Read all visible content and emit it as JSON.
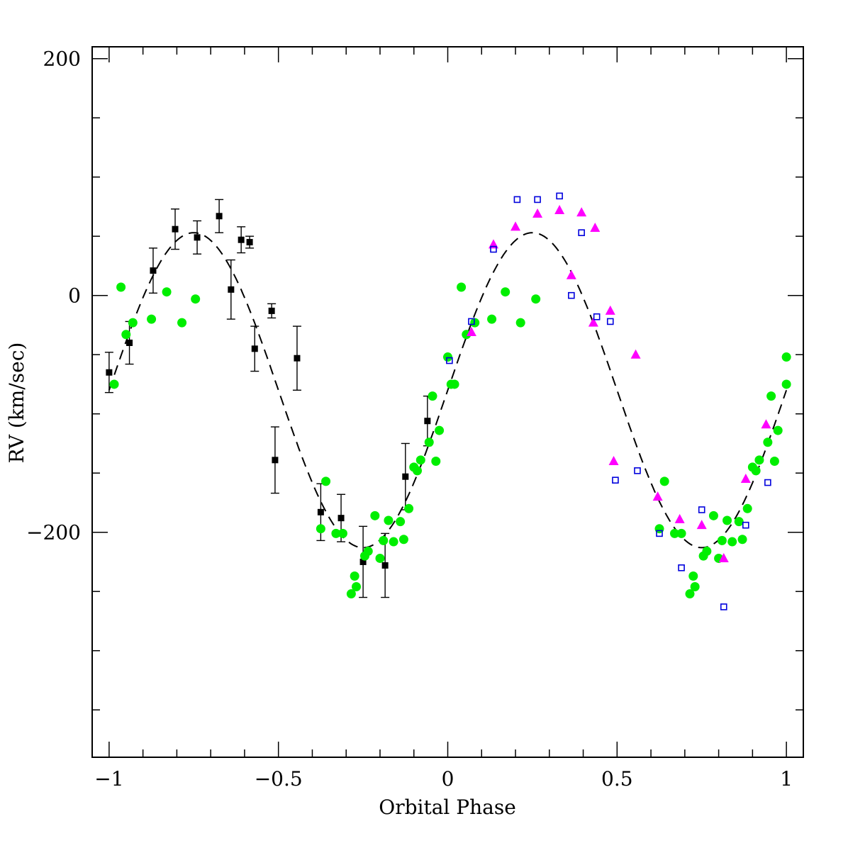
{
  "chart_data": {
    "type": "scatter",
    "xlabel": "Orbital Phase",
    "ylabel": "RV (km/sec)",
    "xlim": [
      -1.05,
      1.05
    ],
    "ylim": [
      -390,
      210
    ],
    "x_ticks": [
      -1,
      -0.5,
      0,
      0.5,
      1
    ],
    "x_tick_labels": [
      "−1",
      "−0.5",
      "0",
      "0.5",
      "1"
    ],
    "y_ticks": [
      -200,
      0,
      200
    ],
    "y_tick_labels": [
      "−200",
      "0",
      "200"
    ],
    "y_minor_ticks": [
      -350,
      -300,
      -250,
      -150,
      -100,
      -50,
      50,
      100,
      150
    ],
    "grid": false,
    "legend": "none",
    "colors": {
      "black_points": "#000000",
      "green_points": "#00ee00",
      "magenta_points": "#ff00ff",
      "blue_points": "#0000dd",
      "model_curve": "#000000"
    },
    "model_curve": {
      "style": "dashed",
      "gamma": -80,
      "amplitude": 133,
      "function": "gamma + amplitude*sin(2*pi*phase)"
    },
    "series": [
      {
        "marker": "filled-square-errorbar",
        "color": "#000000",
        "points": [
          {
            "x": -1.0,
            "y": -65,
            "err": 17
          },
          {
            "x": -0.94,
            "y": -40,
            "err": 18
          },
          {
            "x": -0.87,
            "y": 21,
            "err": 19
          },
          {
            "x": -0.805,
            "y": 56,
            "err": 17
          },
          {
            "x": -0.74,
            "y": 49,
            "err": 14
          },
          {
            "x": -0.675,
            "y": 67,
            "err": 14
          },
          {
            "x": -0.61,
            "y": 47,
            "err": 11
          },
          {
            "x": -0.585,
            "y": 45,
            "err": 5
          },
          {
            "x": -0.64,
            "y": 5,
            "err": 25
          },
          {
            "x": -0.57,
            "y": -45,
            "err": 19
          },
          {
            "x": -0.52,
            "y": -13,
            "err": 6
          },
          {
            "x": -0.51,
            "y": -139,
            "err": 28
          },
          {
            "x": -0.445,
            "y": -53,
            "err": 27
          },
          {
            "x": -0.375,
            "y": -183,
            "err": 24
          },
          {
            "x": -0.315,
            "y": -188,
            "err": 20
          },
          {
            "x": -0.25,
            "y": -225,
            "err": 30
          },
          {
            "x": -0.185,
            "y": -228,
            "err": 27
          },
          {
            "x": -0.125,
            "y": -153,
            "err": 28
          },
          {
            "x": -0.06,
            "y": -106,
            "err": 21
          }
        ]
      },
      {
        "marker": "filled-circle",
        "color": "#00ee00",
        "points": [
          {
            "x": -0.985,
            "y": -75
          },
          {
            "x": -0.965,
            "y": 7
          },
          {
            "x": -0.95,
            "y": -33
          },
          {
            "x": -0.93,
            "y": -23
          },
          {
            "x": -0.875,
            "y": -20
          },
          {
            "x": -0.83,
            "y": 3
          },
          {
            "x": -0.785,
            "y": -23
          },
          {
            "x": -0.745,
            "y": -3
          },
          {
            "x": -0.375,
            "y": -197
          },
          {
            "x": -0.36,
            "y": -157
          },
          {
            "x": -0.33,
            "y": -201
          },
          {
            "x": -0.31,
            "y": -201
          },
          {
            "x": -0.285,
            "y": -252
          },
          {
            "x": -0.275,
            "y": -237
          },
          {
            "x": -0.27,
            "y": -246
          },
          {
            "x": -0.245,
            "y": -220
          },
          {
            "x": -0.235,
            "y": -216
          },
          {
            "x": -0.215,
            "y": -186
          },
          {
            "x": -0.2,
            "y": -222
          },
          {
            "x": -0.19,
            "y": -207
          },
          {
            "x": -0.175,
            "y": -190
          },
          {
            "x": -0.16,
            "y": -208
          },
          {
            "x": -0.14,
            "y": -191
          },
          {
            "x": -0.13,
            "y": -206
          },
          {
            "x": -0.115,
            "y": -180
          },
          {
            "x": -0.1,
            "y": -145
          },
          {
            "x": -0.09,
            "y": -148
          },
          {
            "x": -0.08,
            "y": -139
          },
          {
            "x": -0.055,
            "y": -124
          },
          {
            "x": -0.045,
            "y": -85
          },
          {
            "x": -0.035,
            "y": -140
          },
          {
            "x": -0.025,
            "y": -114
          },
          {
            "x": 0.0,
            "y": -52
          },
          {
            "x": 0.01,
            "y": -75
          },
          {
            "x": 0.02,
            "y": -75
          },
          {
            "x": 0.04,
            "y": 7
          },
          {
            "x": 0.055,
            "y": -33
          },
          {
            "x": 0.08,
            "y": -23
          },
          {
            "x": 0.13,
            "y": -20
          },
          {
            "x": 0.17,
            "y": 3
          },
          {
            "x": 0.215,
            "y": -23
          },
          {
            "x": 0.26,
            "y": -3
          },
          {
            "x": 0.625,
            "y": -197
          },
          {
            "x": 0.64,
            "y": -157
          },
          {
            "x": 0.67,
            "y": -201
          },
          {
            "x": 0.69,
            "y": -201
          },
          {
            "x": 0.715,
            "y": -252
          },
          {
            "x": 0.725,
            "y": -237
          },
          {
            "x": 0.73,
            "y": -246
          },
          {
            "x": 0.755,
            "y": -220
          },
          {
            "x": 0.765,
            "y": -216
          },
          {
            "x": 0.785,
            "y": -186
          },
          {
            "x": 0.8,
            "y": -222
          },
          {
            "x": 0.81,
            "y": -207
          },
          {
            "x": 0.825,
            "y": -190
          },
          {
            "x": 0.84,
            "y": -208
          },
          {
            "x": 0.86,
            "y": -191
          },
          {
            "x": 0.87,
            "y": -206
          },
          {
            "x": 0.885,
            "y": -180
          },
          {
            "x": 0.9,
            "y": -145
          },
          {
            "x": 0.91,
            "y": -148
          },
          {
            "x": 0.92,
            "y": -139
          },
          {
            "x": 0.945,
            "y": -124
          },
          {
            "x": 0.955,
            "y": -85
          },
          {
            "x": 0.965,
            "y": -140
          },
          {
            "x": 0.975,
            "y": -114
          },
          {
            "x": 1.0,
            "y": -52
          },
          {
            "x": 1.0,
            "y": -75
          }
        ]
      },
      {
        "marker": "filled-triangle",
        "color": "#ff00ff",
        "points": [
          {
            "x": 0.07,
            "y": -31
          },
          {
            "x": 0.135,
            "y": 43
          },
          {
            "x": 0.2,
            "y": 58
          },
          {
            "x": 0.265,
            "y": 69
          },
          {
            "x": 0.33,
            "y": 72
          },
          {
            "x": 0.395,
            "y": 70
          },
          {
            "x": 0.435,
            "y": 57
          },
          {
            "x": 0.365,
            "y": 17
          },
          {
            "x": 0.43,
            "y": -23
          },
          {
            "x": 0.48,
            "y": -13
          },
          {
            "x": 0.49,
            "y": -140
          },
          {
            "x": 0.555,
            "y": -50
          },
          {
            "x": 0.62,
            "y": -170
          },
          {
            "x": 0.685,
            "y": -189
          },
          {
            "x": 0.75,
            "y": -194
          },
          {
            "x": 0.815,
            "y": -222
          },
          {
            "x": 0.88,
            "y": -155
          },
          {
            "x": 0.94,
            "y": -109
          }
        ]
      },
      {
        "marker": "open-square",
        "color": "#0000dd",
        "points": [
          {
            "x": 0.005,
            "y": -55
          },
          {
            "x": 0.07,
            "y": -22
          },
          {
            "x": 0.135,
            "y": 39
          },
          {
            "x": 0.205,
            "y": 81
          },
          {
            "x": 0.265,
            "y": 81
          },
          {
            "x": 0.33,
            "y": 84
          },
          {
            "x": 0.395,
            "y": 53
          },
          {
            "x": 0.365,
            "y": 0
          },
          {
            "x": 0.44,
            "y": -18
          },
          {
            "x": 0.48,
            "y": -22
          },
          {
            "x": 0.495,
            "y": -156
          },
          {
            "x": 0.56,
            "y": -148
          },
          {
            "x": 0.625,
            "y": -201
          },
          {
            "x": 0.69,
            "y": -230
          },
          {
            "x": 0.75,
            "y": -181
          },
          {
            "x": 0.815,
            "y": -263
          },
          {
            "x": 0.88,
            "y": -194
          },
          {
            "x": 0.945,
            "y": -158
          }
        ]
      }
    ]
  }
}
